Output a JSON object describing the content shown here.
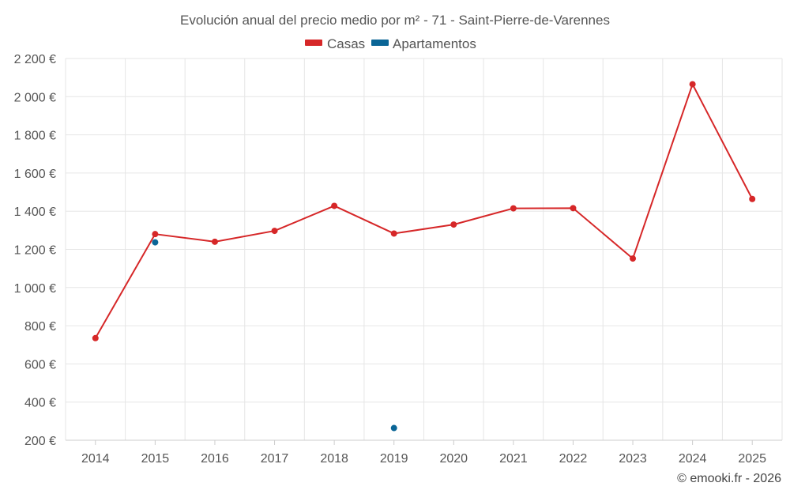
{
  "chart_data": {
    "type": "line",
    "title": "Evolución anual del precio medio por m² - 71 - Saint-Pierre-de-Varennes",
    "x": [
      "2014",
      "2015",
      "2016",
      "2017",
      "2018",
      "2019",
      "2020",
      "2021",
      "2022",
      "2023",
      "2024",
      "2025"
    ],
    "series": [
      {
        "name": "Casas",
        "color": "#d62728",
        "values": [
          735,
          1280,
          1240,
          1297,
          1428,
          1283,
          1330,
          1415,
          1416,
          1152,
          2065,
          1464
        ]
      },
      {
        "name": "Apartamentos",
        "color": "#0a6596",
        "values": [
          null,
          1237,
          null,
          null,
          null,
          264,
          null,
          null,
          null,
          null,
          null,
          null
        ]
      }
    ],
    "yticks": [
      "2 200 €",
      "2 000 €",
      "1 800 €",
      "1 600 €",
      "1 400 €",
      "1 200 €",
      "1 000 €",
      "800 €",
      "600 €",
      "400 €",
      "200 €"
    ],
    "ylim": [
      200,
      2200
    ],
    "grid": true,
    "legend_position": "top-center"
  },
  "credit": "© emooki.fr - 2026"
}
